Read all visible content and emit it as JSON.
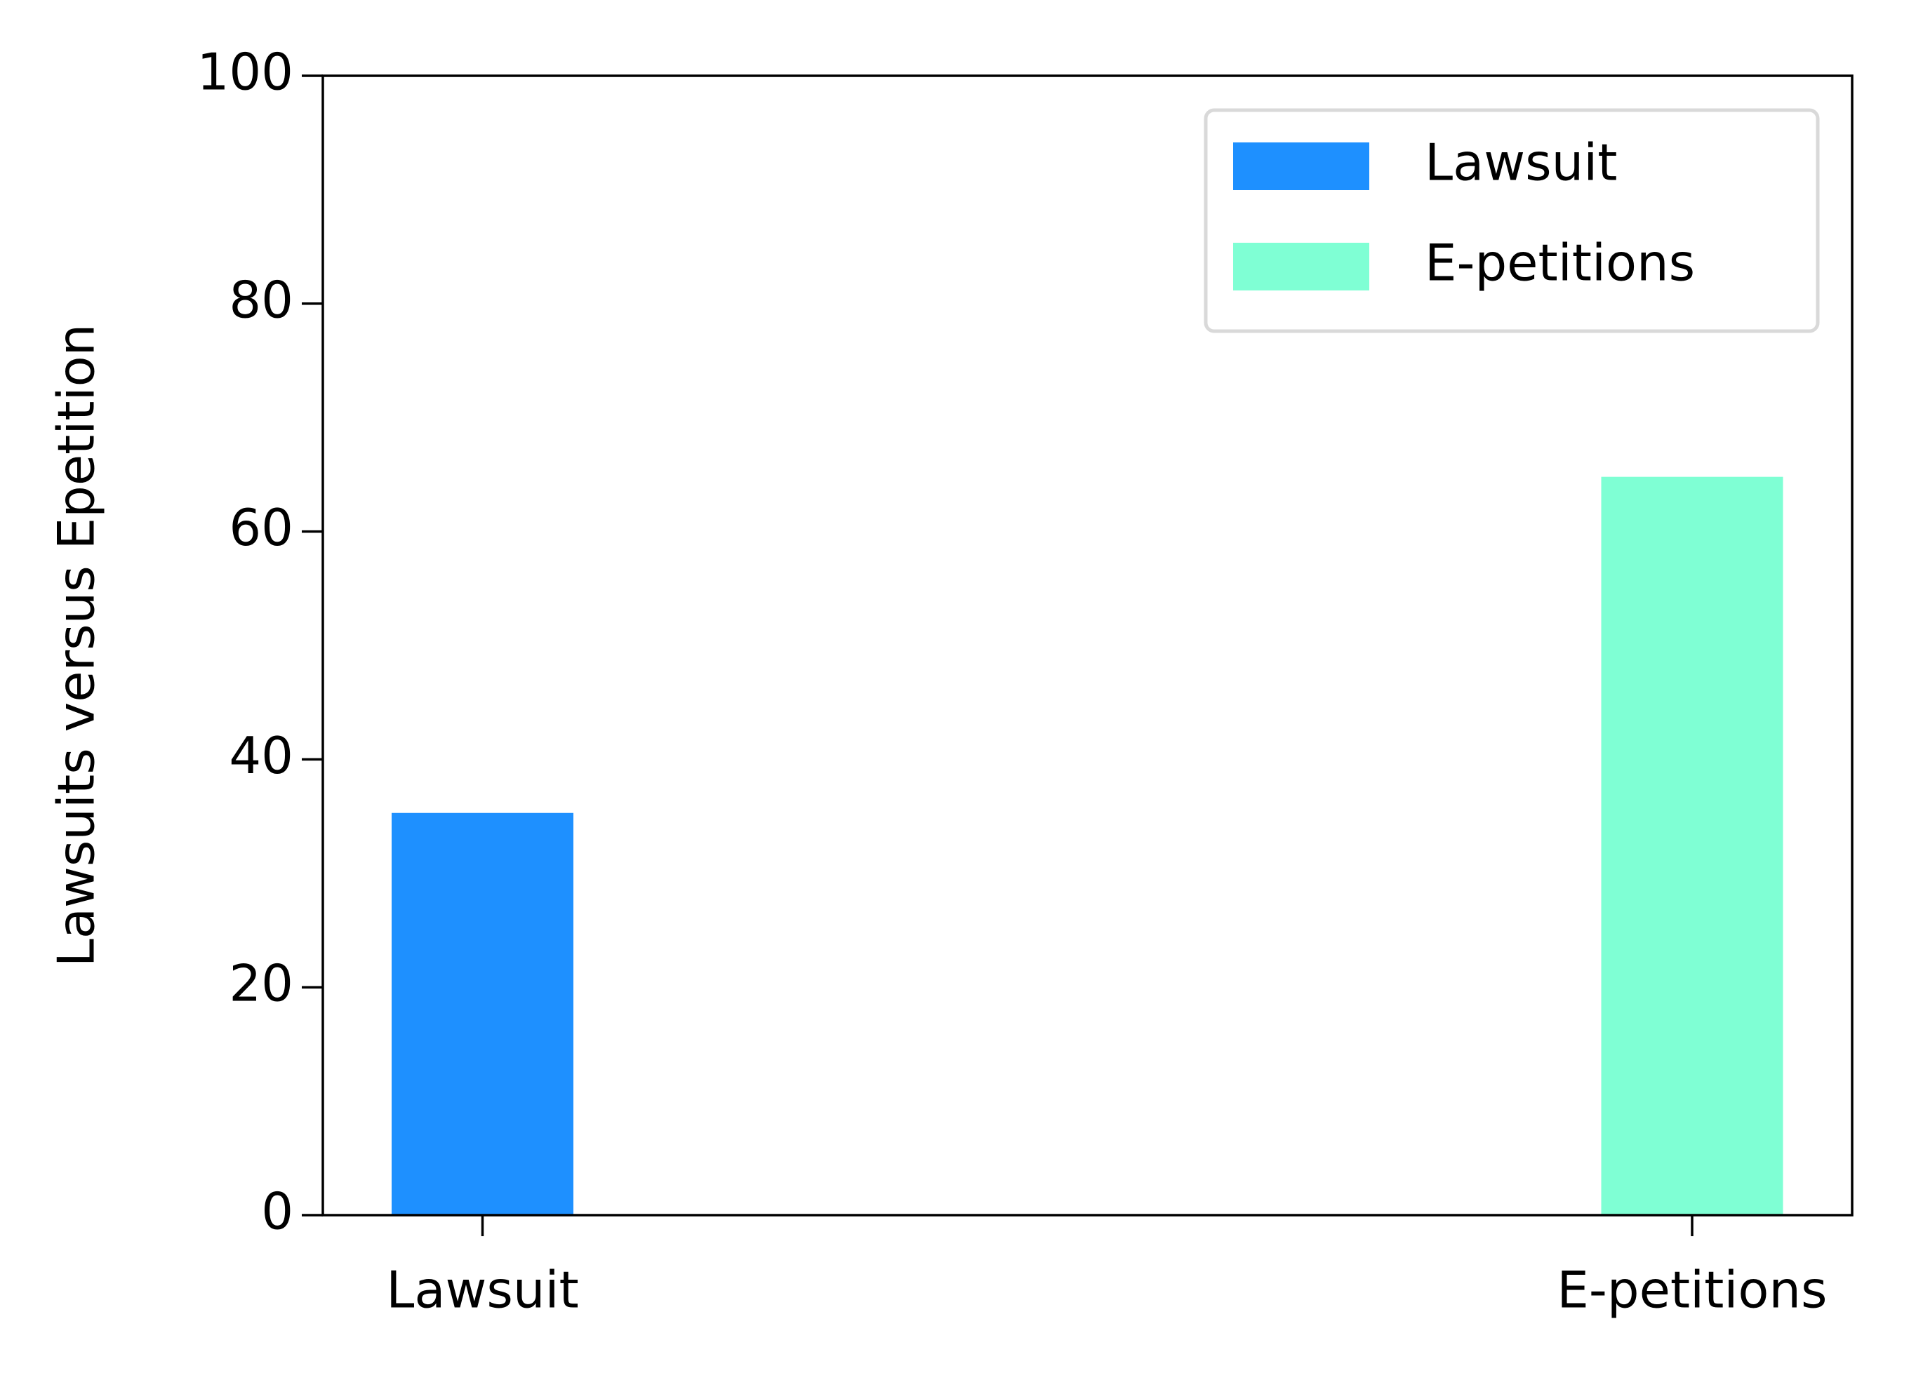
{
  "chart_data": {
    "type": "bar",
    "ylabel": "Lawsuits versus Epetition",
    "categories": [
      "Lawsuit",
      "E-petitions"
    ],
    "series": [
      {
        "name": "Lawsuit",
        "color": "#1e90ff",
        "values": [
          35.3,
          null
        ]
      },
      {
        "name": "E-petitions",
        "color": "#7fffd4",
        "values": [
          null,
          64.8
        ]
      }
    ],
    "ylim": [
      0,
      100
    ],
    "yticks": [
      0,
      20,
      40,
      60,
      80,
      100
    ],
    "legend": "upper right",
    "grid": false
  }
}
